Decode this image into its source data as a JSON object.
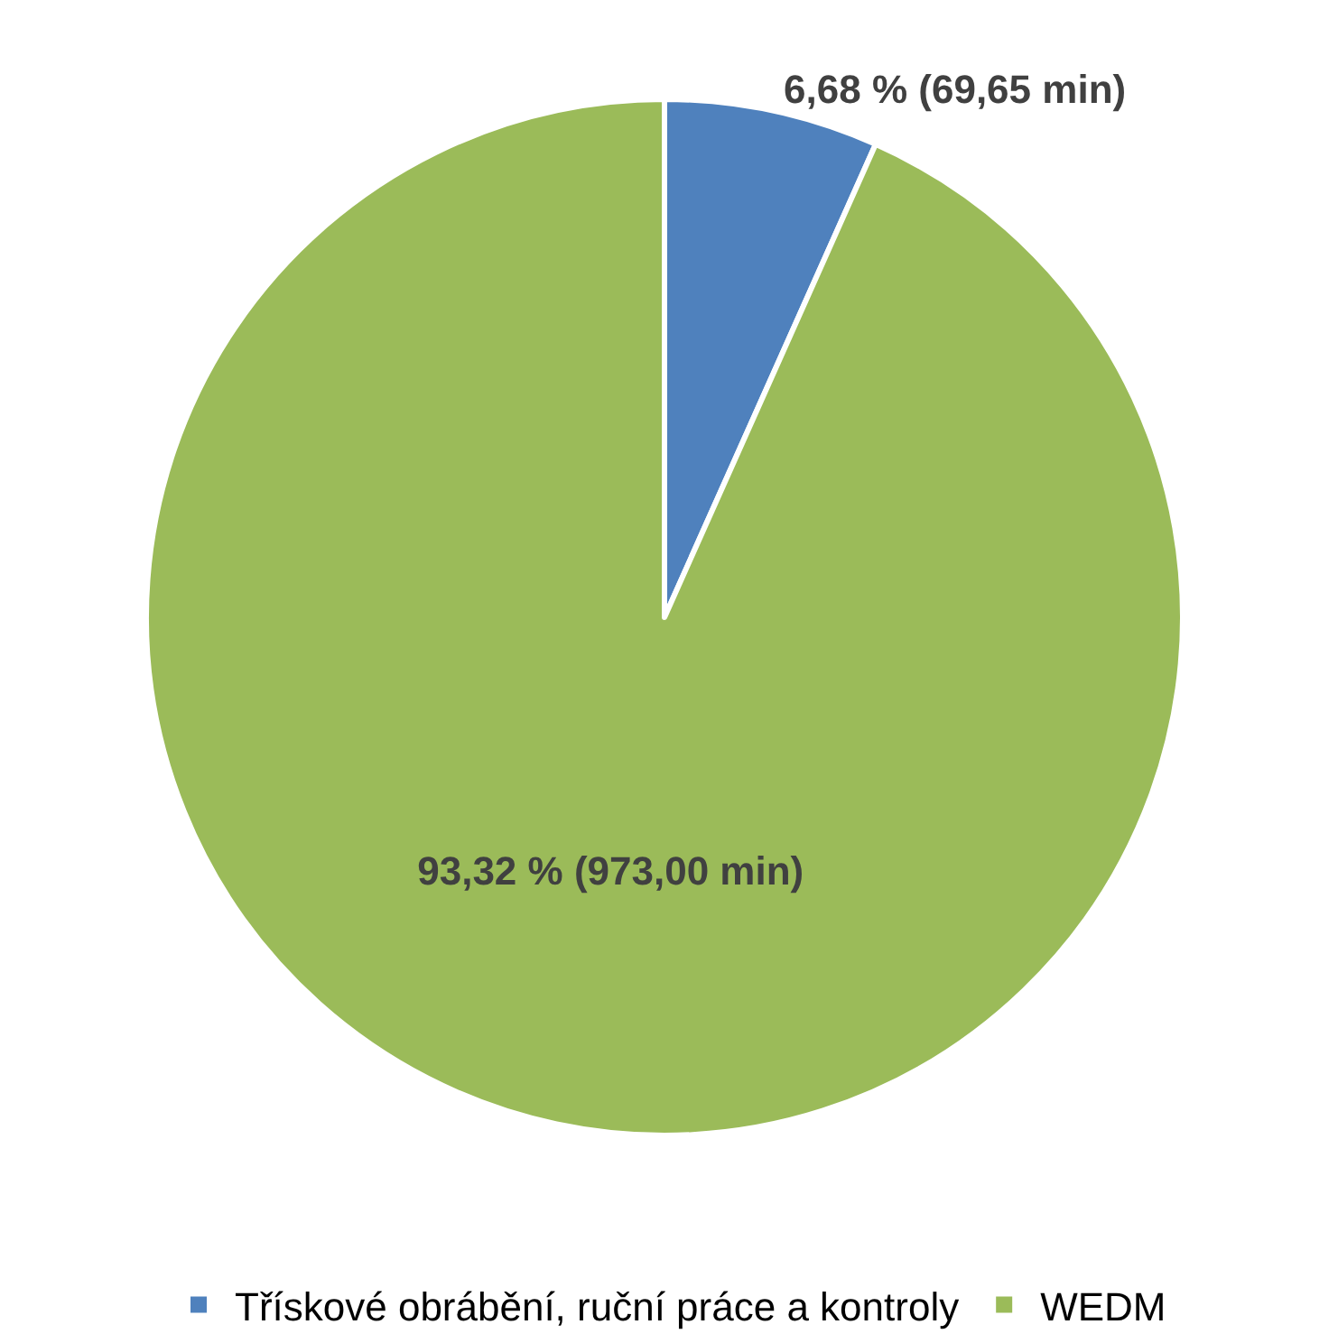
{
  "chart_data": {
    "type": "pie",
    "categories": [
      "Třískové obrábění, ruční práce a kontroly",
      "WEDM"
    ],
    "values": [
      69.65,
      973.0
    ],
    "colors": [
      "#4f81bd",
      "#9bbb59"
    ],
    "value_labels": [
      "6,68 % (69,65 min)",
      "93,32 % (973,00 min)"
    ],
    "legend": "bottom"
  }
}
